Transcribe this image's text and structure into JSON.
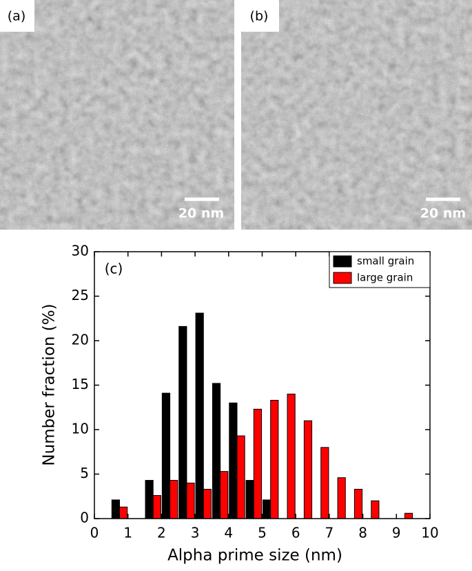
{
  "chart_data": {
    "type": "bar",
    "panels": [
      {
        "label": "(a)",
        "scale_bar": "20 nm"
      },
      {
        "label": "(b)",
        "scale_bar": "20 nm"
      }
    ],
    "annotation": "(c)",
    "x_label": "Alpha prime size (nm)",
    "y_label": "Number fraction (%)",
    "x": [
      0.75,
      1.25,
      1.75,
      2.25,
      2.75,
      3.25,
      3.75,
      4.25,
      4.75,
      5.25,
      5.75,
      6.25,
      6.75,
      7.25,
      7.75,
      8.25,
      8.75,
      9.25
    ],
    "series": [
      {
        "name": "small grain",
        "color": "#000000",
        "values": [
          2.1,
          0,
          4.3,
          14.1,
          21.6,
          23.1,
          15.2,
          13.0,
          4.3,
          2.1,
          0,
          0,
          0,
          0,
          0,
          0,
          0,
          0
        ]
      },
      {
        "name": "large grain",
        "color": "#ff0000",
        "values": [
          1.3,
          0,
          2.6,
          4.3,
          4.0,
          3.3,
          5.3,
          9.3,
          12.3,
          13.3,
          14.0,
          11.0,
          8.0,
          4.6,
          3.3,
          2.0,
          0,
          0.6
        ]
      }
    ],
    "xlim": [
      0,
      10
    ],
    "xticks": [
      0,
      1,
      2,
      3,
      4,
      5,
      6,
      7,
      8,
      9,
      10
    ],
    "ylim": [
      0,
      30
    ],
    "yticks": [
      0,
      5,
      10,
      15,
      20,
      25,
      30
    ],
    "legend": "upper right"
  }
}
